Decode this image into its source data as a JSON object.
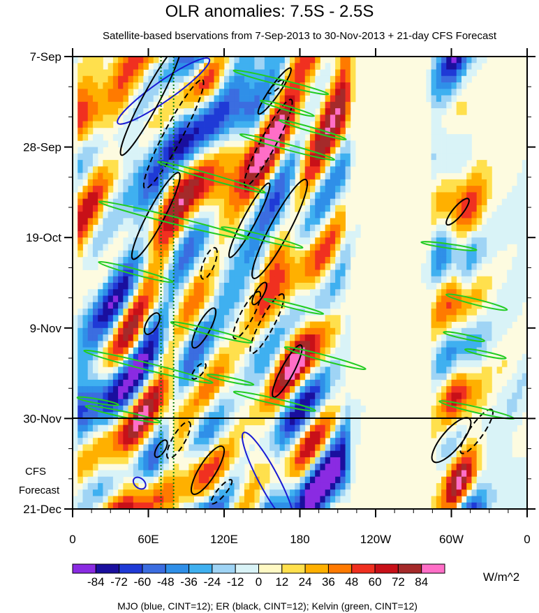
{
  "chart_data": {
    "type": "heatmap",
    "title": "OLR anomalies: 7.5S - 2.5S",
    "subtitle": "Satellite-based bservations from 7-Sep-2013 to 30-Nov-2013 + 21-day CFS Forecast",
    "xlabel": "",
    "ylabel": "",
    "x_tick_labels": [
      "0",
      "60E",
      "120E",
      "180",
      "120W",
      "60W",
      "0"
    ],
    "x_tick_values_deg_east": [
      0,
      60,
      120,
      180,
      240,
      300,
      360
    ],
    "x_range_deg_east": [
      0,
      360
    ],
    "y_tick_labels": [
      "7-Sep",
      "28-Sep",
      "19-Oct",
      "9-Nov",
      "30-Nov",
      "21-Dec"
    ],
    "y_tick_values_day": [
      0,
      21,
      42,
      63,
      84,
      105
    ],
    "y_range_day": [
      0,
      105
    ],
    "observation_end_day": 84,
    "forecast_label_line1": "CFS",
    "forecast_label_line2": "Forecast",
    "vertical_reference_lines_deg_east": [
      70,
      80
    ],
    "colorbar": {
      "levels": [
        -84,
        -72,
        -60,
        -48,
        -36,
        -24,
        -12,
        0,
        12,
        24,
        36,
        48,
        60,
        72,
        84
      ],
      "labels": [
        "-84",
        "-72",
        "-60",
        "-48",
        "-36",
        "-24",
        "-12",
        "0",
        "12",
        "24",
        "36",
        "48",
        "60",
        "72",
        "84"
      ],
      "colors": [
        "#8a2be2",
        "#1a0f9e",
        "#1f3ad6",
        "#3b6de0",
        "#2f8fe8",
        "#3fb0f0",
        "#9fd4f5",
        "#d9f3f7",
        "#fff9c4",
        "#ffe04d",
        "#ffb000",
        "#ff7a00",
        "#f03020",
        "#c81018",
        "#a52a2a",
        "#ff6ec7"
      ],
      "units": "W/m^2"
    },
    "footer": "MJO (blue, CINT=12); ER (black, CINT=12); Kelvin (green, CINT=12)",
    "contour_colors": {
      "mjo": "#1a1ad4",
      "er": "#000000",
      "kelvin": "#22cc22"
    }
  }
}
